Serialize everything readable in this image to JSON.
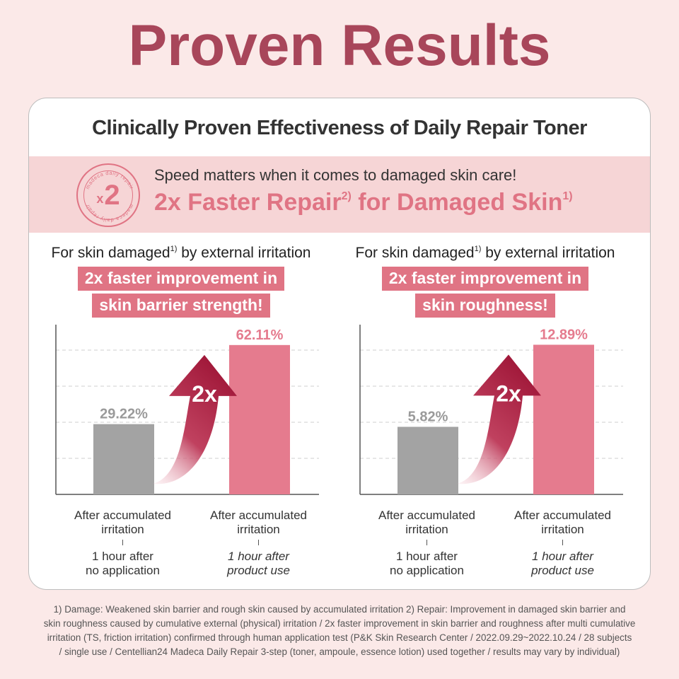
{
  "headline": "Proven Results",
  "card": {
    "title": "Clinically Proven Effectiveness of Daily Repair Toner",
    "badge": {
      "ring_text_top": "madeca daily repair",
      "ring_text_bottom": "madeca daily repair",
      "multiplier_prefix": "x",
      "multiplier_value": "2"
    },
    "band_line1": "Speed matters when it comes to damaged skin care!",
    "band_line2_a": "2x Faster Repair",
    "band_line2_sup_a": "2)",
    "band_line2_b": " for Damaged Skin",
    "band_line2_sup_b": "1)"
  },
  "colors": {
    "accent": "#e07484",
    "headline": "#a8465a",
    "gray_bar": "#a3a3a3",
    "pink_bar": "#e57b8e",
    "arrow": "#a1193a",
    "band": "#f6d5d6"
  },
  "panels": [
    {
      "sub_a": "For skin damaged",
      "sub_sup": "1)",
      "sub_b": " by external irritation",
      "highlight_1": "2x faster improvement in",
      "highlight_2": "skin barrier strength!",
      "arrow_label": "2x",
      "labels": {
        "left_line1": "After accumulated",
        "left_line2": "irritation",
        "left_line3": "1 hour after",
        "left_line4": "no application",
        "right_line1": "After accumulated",
        "right_line2": "irritation",
        "right_line3": "1 hour after",
        "right_line4": "product use"
      }
    },
    {
      "sub_a": "For skin damaged",
      "sub_sup": "1)",
      "sub_b": " by external irritation",
      "highlight_1": "2x faster improvement in",
      "highlight_2": "skin roughness!",
      "arrow_label": "2x",
      "labels": {
        "left_line1": "After accumulated",
        "left_line2": "irritation",
        "left_line3": "1 hour after",
        "left_line4": "no application",
        "right_line1": "After accumulated",
        "right_line2": "irritation",
        "right_line3": "1 hour after",
        "right_line4": "product use"
      }
    }
  ],
  "chart_data": [
    {
      "type": "bar",
      "categories": [
        "After accumulated irritation 1 hour after no application",
        "After accumulated irritation 1 hour after product use"
      ],
      "values": [
        29.22,
        62.11
      ],
      "value_labels": [
        "29.22%",
        "62.11%"
      ],
      "ylim": [
        0,
        70
      ],
      "grid": true
    },
    {
      "type": "bar",
      "categories": [
        "After accumulated irritation 1 hour after no application",
        "After accumulated irritation 1 hour after product use"
      ],
      "values": [
        5.82,
        12.89
      ],
      "value_labels": [
        "5.82%",
        "12.89%"
      ],
      "ylim": [
        0,
        14.5
      ],
      "grid": true
    }
  ],
  "footnote": {
    "line1": "1) Damage: Weakened skin barrier and rough skin caused by accumulated irritation 2) Repair: Improvement in damaged skin barrier and",
    "line2": "skin roughness caused by cumulative external (physical) irritation / 2x faster improvement in skin barrier and roughness after multi cumulative",
    "line3": "irritation (TS, friction irritation) confirmed through human application test (P&K Skin Research Center / 2022.09.29~2022.10.24 / 28 subjects",
    "line4": "/ single use / Centellian24 Madeca Daily Repair 3-step (toner, ampoule, essence lotion) used together / results may vary by individual)"
  }
}
